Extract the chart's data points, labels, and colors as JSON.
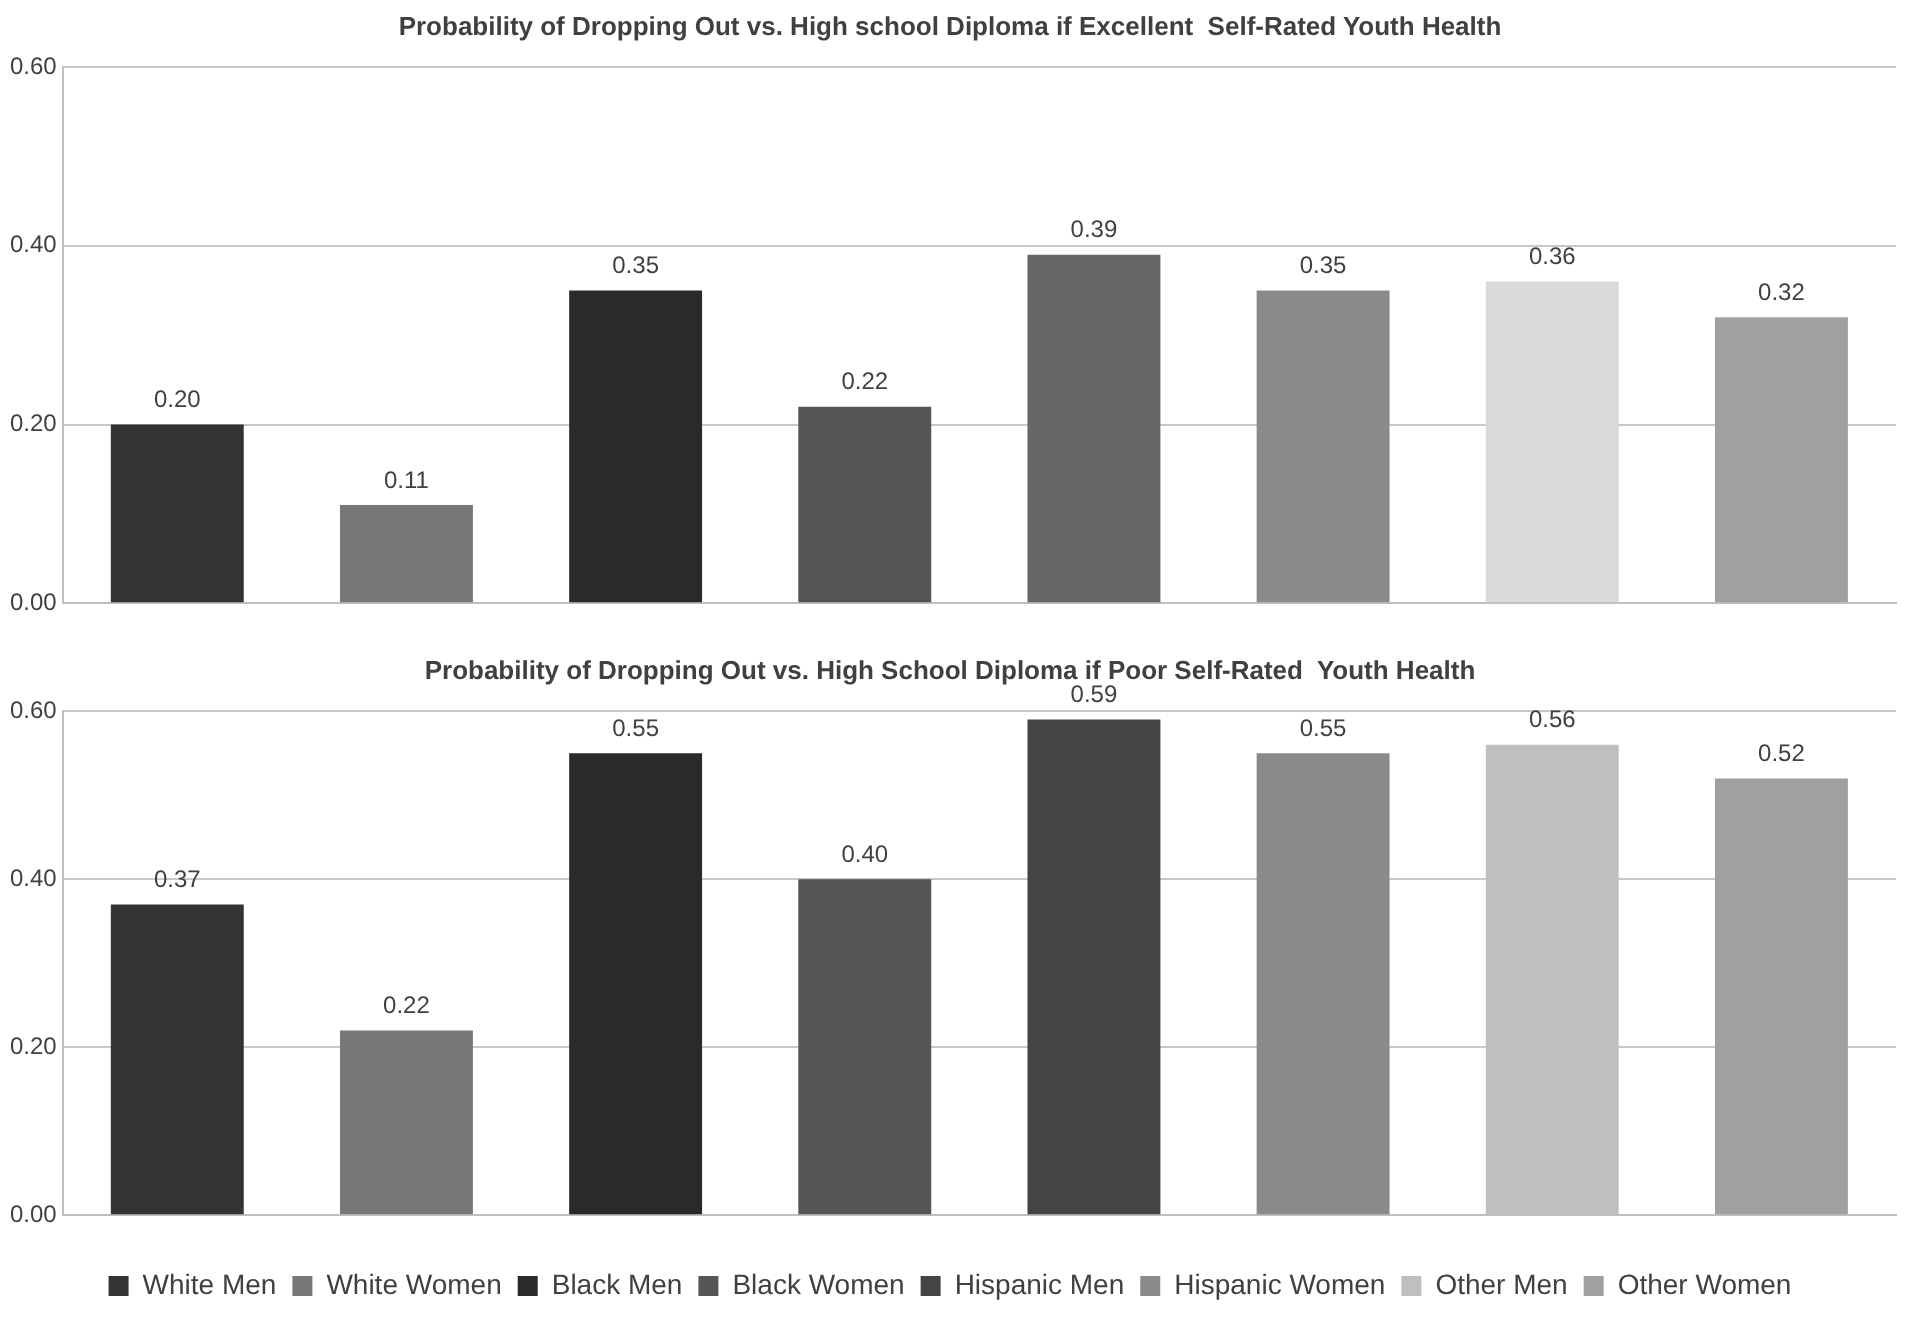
{
  "chart_data": [
    {
      "type": "bar",
      "title": "Probability of Dropping Out vs. High school Diploma if Excellent  Self-Rated Youth Health",
      "categories": [
        null
      ],
      "ylim": [
        0,
        0.6
      ],
      "yticks": [
        {
          "value": 0,
          "label": "0.00"
        },
        {
          "value": 0.2,
          "label": "0.20"
        },
        {
          "value": 0.4,
          "label": "0.40"
        },
        {
          "value": 0.6,
          "label": "0.60"
        }
      ],
      "grid": "y",
      "legend": false,
      "series": [
        {
          "color": "#333333",
          "values": [
            0.2
          ],
          "value_labels": [
            "0.20"
          ]
        },
        {
          "color": "#777777",
          "values": [
            0.11
          ],
          "value_labels": [
            "0.11"
          ]
        },
        {
          "color": "#2a2a2a",
          "values": [
            0.35
          ],
          "value_labels": [
            "0.35"
          ]
        },
        {
          "color": "#555555",
          "values": [
            0.22
          ],
          "value_labels": [
            "0.22"
          ]
        },
        {
          "color": "#666666",
          "values": [
            0.39
          ],
          "value_labels": [
            "0.39"
          ]
        },
        {
          "color": "#8a8a8a",
          "values": [
            0.35
          ],
          "value_labels": [
            "0.35"
          ]
        },
        {
          "color": "#d9d9d9",
          "values": [
            0.36
          ],
          "value_labels": [
            "0.36"
          ]
        },
        {
          "color": "#a0a0a0",
          "values": [
            0.32
          ],
          "value_labels": [
            "0.32"
          ]
        }
      ]
    },
    {
      "type": "bar",
      "title": "Probability of Dropping Out vs. High School Diploma if Poor Self-Rated  Youth Health",
      "categories": [
        null
      ],
      "ylim": [
        0,
        0.6
      ],
      "yticks": [
        {
          "value": 0,
          "label": "0.00"
        },
        {
          "value": 0.2,
          "label": "0.20"
        },
        {
          "value": 0.4,
          "label": "0.40"
        },
        {
          "value": 0.6,
          "label": "0.60"
        }
      ],
      "grid": "y",
      "legend": "bottom",
      "series": [
        {
          "name": "White Men",
          "color": "#333333",
          "values": [
            0.37
          ],
          "value_labels": [
            "0.37"
          ]
        },
        {
          "name": "White Women",
          "color": "#777777",
          "values": [
            0.22
          ],
          "value_labels": [
            "0.22"
          ]
        },
        {
          "name": "Black Men",
          "color": "#2a2a2a",
          "values": [
            0.55
          ],
          "value_labels": [
            "0.55"
          ]
        },
        {
          "name": "Black Women",
          "color": "#555555",
          "values": [
            0.4
          ],
          "value_labels": [
            "0.40"
          ]
        },
        {
          "name": "Hispanic Men",
          "color": "#444444",
          "values": [
            0.59
          ],
          "value_labels": [
            "0.59"
          ]
        },
        {
          "name": "Hispanic Women",
          "color": "#8a8a8a",
          "values": [
            0.55
          ],
          "value_labels": [
            "0.55"
          ]
        },
        {
          "name": "Other Men",
          "color": "#bfbfbf",
          "values": [
            0.56
          ],
          "value_labels": [
            "0.56"
          ]
        },
        {
          "name": "Other Women",
          "color": "#a0a0a0",
          "values": [
            0.52
          ],
          "value_labels": [
            "0.52"
          ]
        }
      ]
    }
  ]
}
